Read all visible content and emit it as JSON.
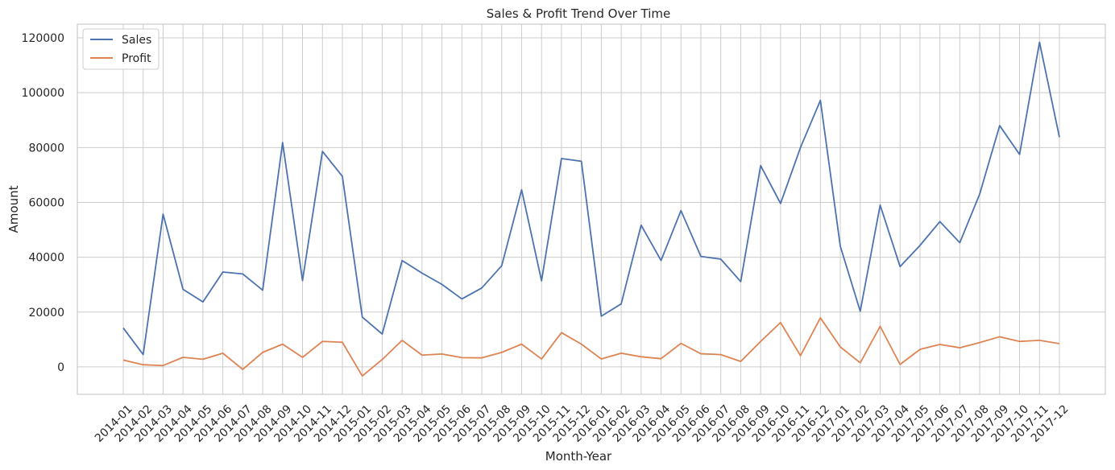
{
  "chart_data": {
    "type": "line",
    "title": "Sales & Profit Trend Over Time",
    "xlabel": "Month-Year",
    "ylabel": "Amount",
    "ylim": [
      -10000,
      125000
    ],
    "yticks": [
      0,
      20000,
      40000,
      60000,
      80000,
      100000,
      120000
    ],
    "ytick_labels": [
      "0",
      "20000",
      "40000",
      "60000",
      "80000",
      "100000",
      "120000"
    ],
    "grid": true,
    "legend_position": "top-left",
    "categories": [
      "2014-01",
      "2014-02",
      "2014-03",
      "2014-04",
      "2014-05",
      "2014-06",
      "2014-07",
      "2014-08",
      "2014-09",
      "2014-10",
      "2014-11",
      "2014-12",
      "2015-01",
      "2015-02",
      "2015-03",
      "2015-04",
      "2015-05",
      "2015-06",
      "2015-07",
      "2015-08",
      "2015-09",
      "2015-10",
      "2015-11",
      "2015-12",
      "2016-01",
      "2016-02",
      "2016-03",
      "2016-04",
      "2016-05",
      "2016-06",
      "2016-07",
      "2016-08",
      "2016-09",
      "2016-10",
      "2016-11",
      "2016-12",
      "2017-01",
      "2017-02",
      "2017-03",
      "2017-04",
      "2017-05",
      "2017-06",
      "2017-07",
      "2017-08",
      "2017-09",
      "2017-10",
      "2017-11",
      "2017-12"
    ],
    "series": [
      {
        "name": "Sales",
        "color": "#4c72b0",
        "values": [
          14200,
          4500,
          55700,
          28300,
          23700,
          34600,
          33900,
          28000,
          81800,
          31500,
          78600,
          69500,
          18200,
          12000,
          38800,
          34200,
          30100,
          24800,
          28800,
          36900,
          64600,
          31400,
          76000,
          75000,
          18500,
          23000,
          51700,
          38800,
          57000,
          40300,
          39300,
          31100,
          73400,
          59600,
          80000,
          97200,
          44000,
          20300,
          59000,
          36600,
          44300,
          53000,
          45300,
          63100,
          88000,
          77500,
          118400,
          83800
        ]
      },
      {
        "name": "Profit",
        "color": "#dd8452",
        "values": [
          2500,
          800,
          500,
          3500,
          2800,
          5000,
          -900,
          5300,
          8300,
          3500,
          9300,
          9000,
          -3300,
          2700,
          9700,
          4300,
          4700,
          3400,
          3300,
          5300,
          8300,
          2900,
          12500,
          8300,
          2900,
          5000,
          3700,
          3000,
          8600,
          4800,
          4500,
          2000,
          9300,
          16200,
          4100,
          17900,
          7300,
          1500,
          14800,
          900,
          6400,
          8200,
          7000,
          8900,
          11000,
          9300,
          9700,
          8500
        ]
      }
    ]
  }
}
